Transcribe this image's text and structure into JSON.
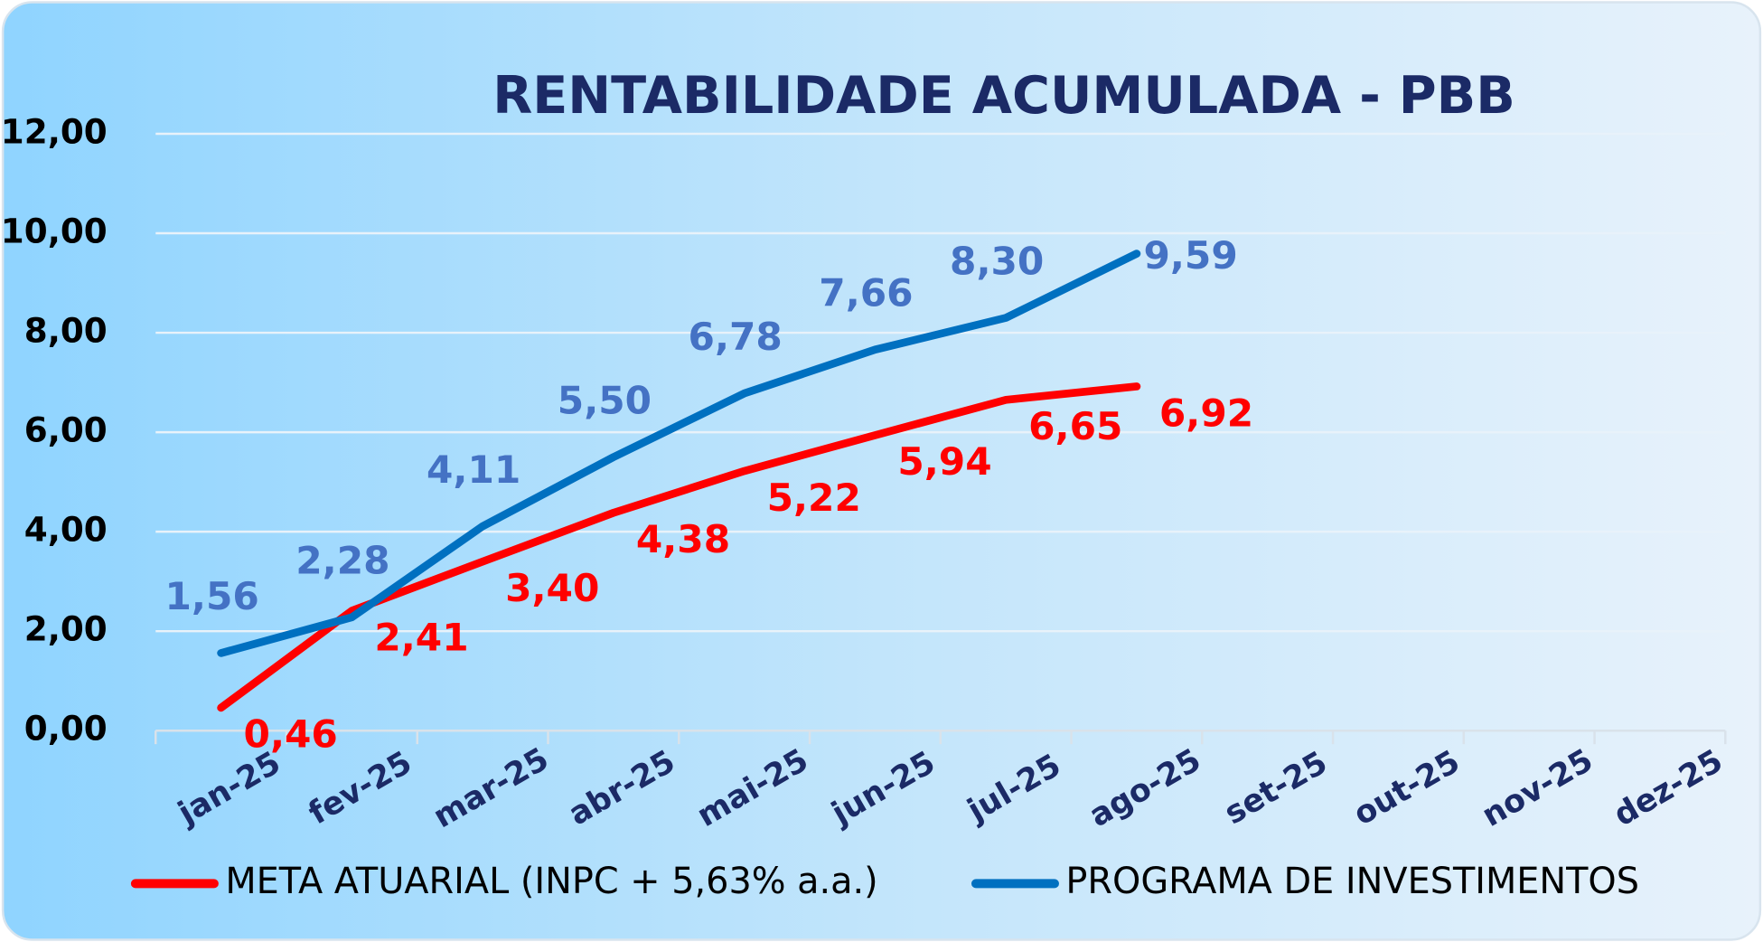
{
  "chart_data": {
    "type": "line",
    "title": "RENTABILIDADE ACUMULADA - PBB",
    "categories": [
      "jan-25",
      "fev-25",
      "mar-25",
      "abr-25",
      "mai-25",
      "jun-25",
      "jul-25",
      "ago-25",
      "set-25",
      "out-25",
      "nov-25",
      "dez-25"
    ],
    "series": [
      {
        "name": "META ATUARIAL (INPC + 5,63% a.a.)",
        "color": "#ff0000",
        "label_color": "#ff0000",
        "values": [
          0.46,
          2.41,
          3.4,
          4.38,
          5.22,
          5.94,
          6.65,
          6.92,
          null,
          null,
          null,
          null
        ],
        "value_labels": [
          "0,46",
          "2,41",
          "3,40",
          "4,38",
          "5,22",
          "5,94",
          "6,65",
          "6,92",
          null,
          null,
          null,
          null
        ]
      },
      {
        "name": "PROGRAMA DE INVESTIMENTOS",
        "color": "#0070c0",
        "label_color": "#4472c4",
        "values": [
          1.56,
          2.28,
          4.11,
          5.5,
          6.78,
          7.66,
          8.3,
          9.59,
          null,
          null,
          null,
          null
        ],
        "value_labels": [
          "1,56",
          "2,28",
          "4,11",
          "5,50",
          "6,78",
          "7,66",
          "8,30",
          "9,59",
          null,
          null,
          null,
          null
        ]
      }
    ],
    "ylim": [
      0,
      12
    ],
    "yticks": [
      {
        "value": 0,
        "label": "0,00"
      },
      {
        "value": 2,
        "label": "2,00"
      },
      {
        "value": 4,
        "label": "4,00"
      },
      {
        "value": 6,
        "label": "6,00"
      },
      {
        "value": 8,
        "label": "8,00"
      },
      {
        "value": 10,
        "label": "10,00"
      },
      {
        "value": 12,
        "label": "12,00"
      }
    ],
    "grid": true,
    "legend": "bottom"
  }
}
